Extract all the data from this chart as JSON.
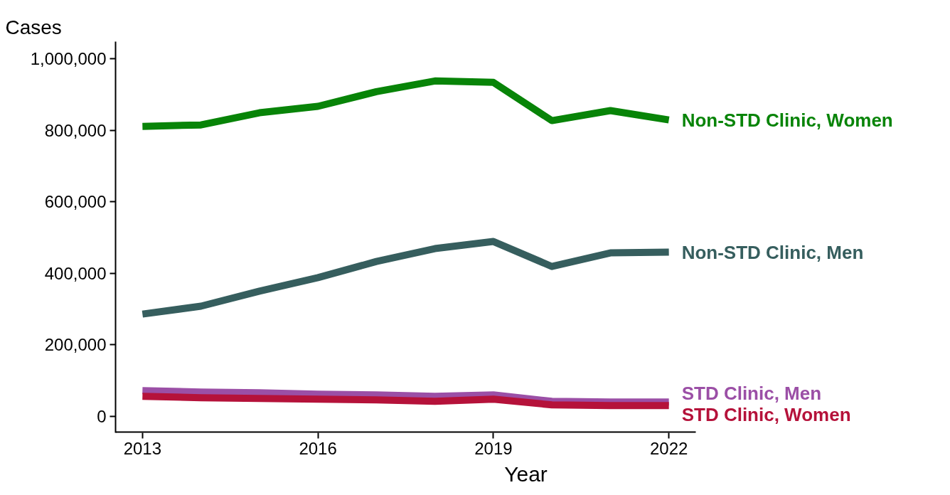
{
  "chart_data": {
    "type": "line",
    "xlabel": "Year",
    "ylabel": "Cases",
    "x": [
      2013,
      2014,
      2015,
      2016,
      2017,
      2018,
      2019,
      2020,
      2021,
      2022
    ],
    "series": [
      {
        "name": "Non-STD Clinic, Women",
        "color": "#088408",
        "values": [
          811000,
          815000,
          849000,
          867000,
          908000,
          938000,
          934000,
          827000,
          855000,
          829000
        ]
      },
      {
        "name": "Non-STD Clinic, Men",
        "color": "#365e5e",
        "values": [
          286000,
          308000,
          350000,
          388000,
          433000,
          469000,
          489000,
          419000,
          457000,
          459000
        ]
      },
      {
        "name": "STD Clinic, Men",
        "color": "#9b4fa6",
        "values": [
          72000,
          68000,
          66000,
          62000,
          60000,
          56000,
          60000,
          42000,
          40000,
          40000
        ]
      },
      {
        "name": "STD Clinic, Women",
        "color": "#b5123a",
        "values": [
          56000,
          52000,
          50000,
          48000,
          46000,
          42000,
          48000,
          32000,
          30000,
          30000
        ]
      }
    ],
    "xlim": [
      2012.54,
      2022.46
    ],
    "ylim": [
      -46000,
      1048000
    ],
    "xticks": [
      2013,
      2016,
      2019,
      2022
    ],
    "yticks": [
      {
        "value": 0,
        "label": "0"
      },
      {
        "value": 200000,
        "label": "200,000"
      },
      {
        "value": 400000,
        "label": "400,000"
      },
      {
        "value": 600000,
        "label": "600,000"
      },
      {
        "value": 800000,
        "label": "800,000"
      },
      {
        "value": 1000000,
        "label": "1,000,000"
      }
    ],
    "grid": false,
    "legend": false,
    "marker": "none",
    "line_style": "solid"
  }
}
